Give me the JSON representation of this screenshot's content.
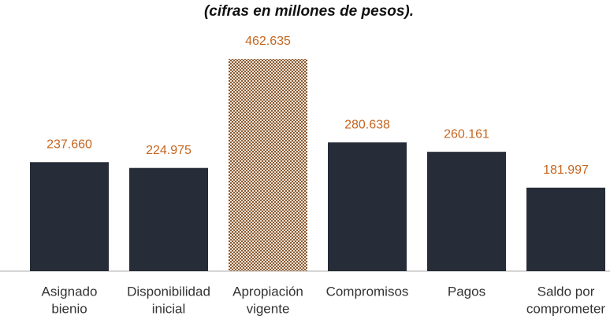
{
  "chart_data": {
    "type": "bar",
    "title": "(cifras en millones de pesos).",
    "categories": [
      [
        "Asignado",
        "bienio"
      ],
      [
        "Disponibilidad",
        "inicial"
      ],
      [
        "Apropiación",
        "vigente"
      ],
      [
        "Compromisos"
      ],
      [
        "Pagos"
      ],
      [
        "Saldo por",
        "comprometer"
      ]
    ],
    "values": [
      237660,
      224975,
      462635,
      280638,
      260161,
      181997
    ],
    "value_labels": [
      "237.660",
      "224.975",
      "462.635",
      "280.638",
      "260.161",
      "181.997"
    ],
    "colors": [
      "#262c38",
      "#262c38",
      "#8a5a33",
      "#262c38",
      "#262c38",
      "#262c38"
    ],
    "hatched": [
      false,
      false,
      true,
      false,
      false,
      false
    ],
    "label_color": "#c5651f"
  }
}
